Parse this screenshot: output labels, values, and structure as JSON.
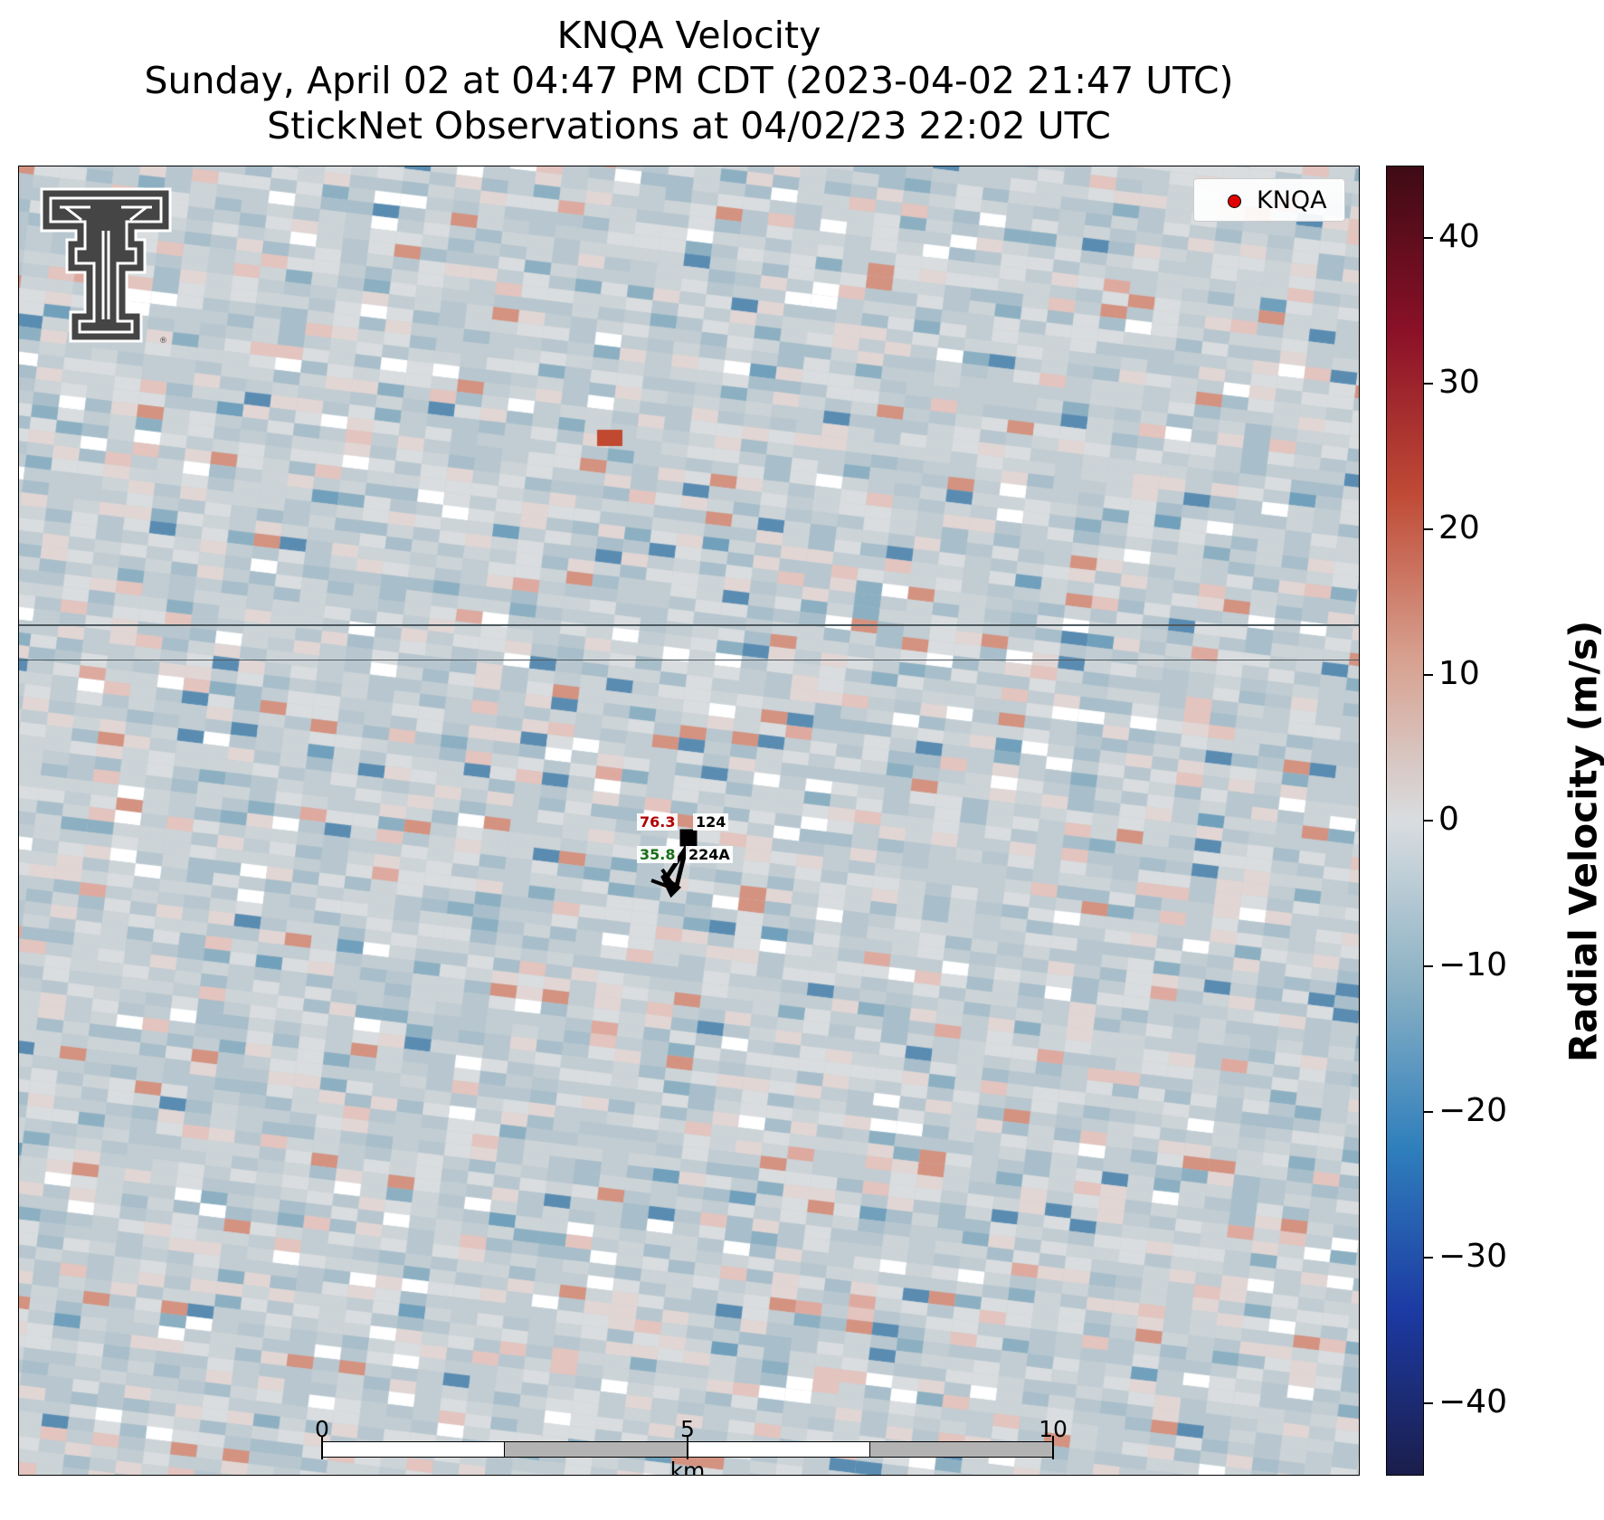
{
  "title": {
    "line1": "KNQA Velocity",
    "line2": "Sunday, April 02 at 04:47 PM CDT (2023-04-02 21:47 UTC)",
    "line3": "StickNet Observations at 04/02/23 22:02 UTC"
  },
  "legend": {
    "label": "KNQA",
    "marker_color": "#e00000"
  },
  "stations": [
    {
      "id": "124",
      "value": "76.3",
      "value_color": "#b00000"
    },
    {
      "id": "224A",
      "value": "35.8",
      "value_color": "#1a6e1a"
    }
  ],
  "scale_bar": {
    "ticks": [
      "0",
      "5",
      "10"
    ],
    "unit": "km"
  },
  "colorbar": {
    "label": "Radial Velocity (m/s)",
    "vmin": -45,
    "vmax": 45,
    "ticks": [
      "40",
      "30",
      "20",
      "10",
      "0",
      "−10",
      "−20",
      "−30",
      "−40"
    ],
    "tick_values": [
      40,
      30,
      20,
      10,
      0,
      -10,
      -20,
      -30,
      -40
    ],
    "colors": [
      "#1b1e4b",
      "#1c3aa3",
      "#2f7fbc",
      "#8bb1c4",
      "#d9dde0",
      "#d7a08f",
      "#bf4a35",
      "#8a1028",
      "#3e0b14"
    ]
  },
  "logo": {
    "name": "Texas Tech double-T logo",
    "color": "#444444"
  }
}
